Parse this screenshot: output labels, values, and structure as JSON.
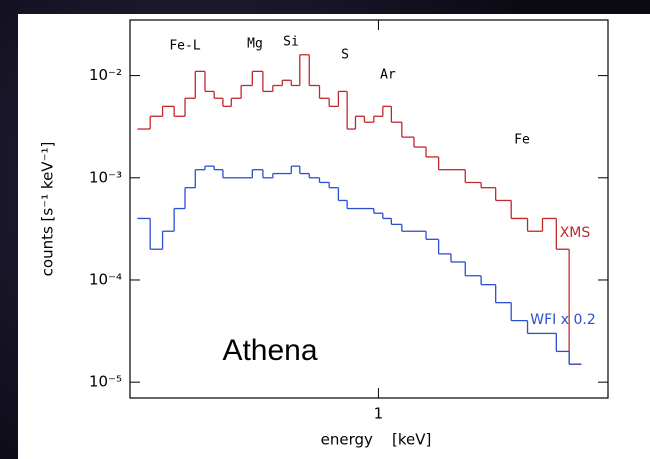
{
  "chart_data": {
    "type": "step",
    "xlabel": "energy    [keV]",
    "ylabel": "counts [s⁻¹ keV⁻¹]",
    "log_x": true,
    "log_y": true,
    "xlim": [
      0.25,
      3.6
    ],
    "xticks": [
      1
    ],
    "ylim": [
      7e-06,
      0.035
    ],
    "yticks": [
      {
        "value": 0.01,
        "label": "10⁻²"
      },
      {
        "value": 0.001,
        "label": "10⁻³"
      },
      {
        "value": 0.0001,
        "label": "10⁻⁴"
      },
      {
        "value": 1e-05,
        "label": "10⁻⁵"
      }
    ],
    "x": [
      0.27,
      0.29,
      0.31,
      0.33,
      0.35,
      0.37,
      0.39,
      0.41,
      0.43,
      0.45,
      0.48,
      0.51,
      0.54,
      0.57,
      0.6,
      0.63,
      0.66,
      0.7,
      0.74,
      0.78,
      0.82,
      0.86,
      0.9,
      0.95,
      1.0,
      1.05,
      1.1,
      1.18,
      1.26,
      1.35,
      1.45,
      1.55,
      1.7,
      1.85,
      2.0,
      2.2,
      2.4,
      2.6,
      2.8,
      3.0
    ],
    "series": [
      {
        "name": "XMS",
        "color": "#c0282b",
        "values": [
          0.003,
          0.004,
          0.005,
          0.004,
          0.006,
          0.011,
          0.007,
          0.006,
          0.005,
          0.006,
          0.008,
          0.011,
          0.007,
          0.008,
          0.009,
          0.008,
          0.016,
          0.008,
          0.006,
          0.005,
          0.007,
          0.003,
          0.004,
          0.0035,
          0.004,
          0.005,
          0.0035,
          0.0025,
          0.002,
          0.0016,
          0.0012,
          0.0012,
          0.0009,
          0.0008,
          0.0006,
          0.0004,
          0.0003,
          0.0004,
          0.0002,
          1.5e-05
        ]
      },
      {
        "name": "WFI x 0.2",
        "color": "#2a4fd0",
        "values": [
          0.0004,
          0.0002,
          0.0003,
          0.0005,
          0.0008,
          0.0012,
          0.0013,
          0.0012,
          0.001,
          0.001,
          0.001,
          0.0012,
          0.001,
          0.0011,
          0.0011,
          0.0013,
          0.0011,
          0.001,
          0.0009,
          0.0008,
          0.0006,
          0.0005,
          0.0005,
          0.0005,
          0.00045,
          0.0004,
          0.00035,
          0.0003,
          0.0003,
          0.00025,
          0.00018,
          0.00015,
          0.00011,
          9e-05,
          6e-05,
          4e-05,
          3e-05,
          3e-05,
          2e-05,
          1.5e-05
        ]
      }
    ],
    "annotations": [
      "Fe-L",
      "Mg",
      "Si",
      "S",
      "Ar",
      "Fe",
      "Athena"
    ]
  }
}
